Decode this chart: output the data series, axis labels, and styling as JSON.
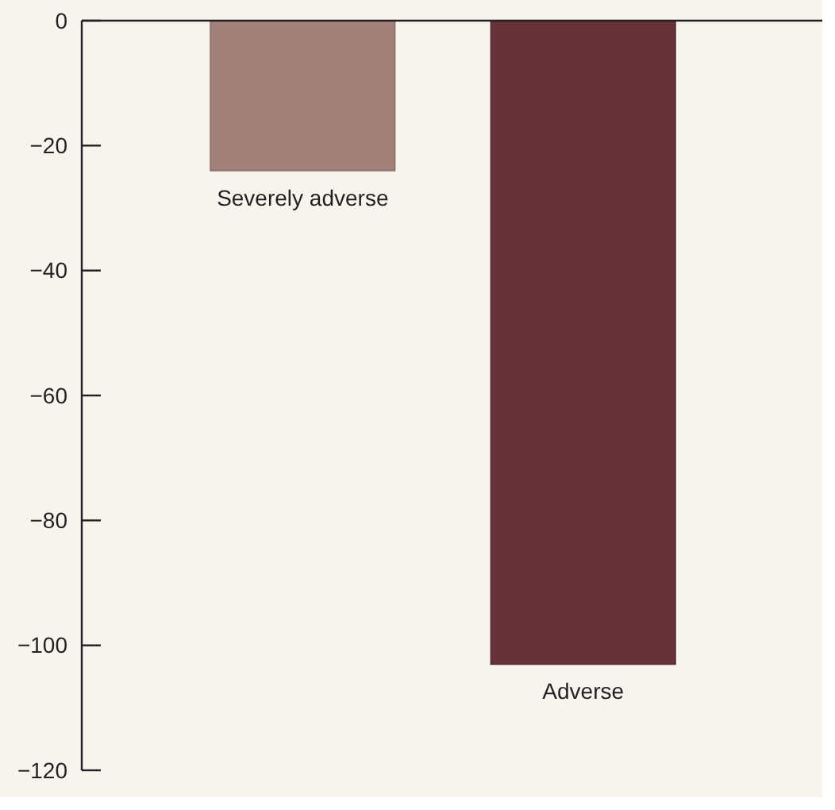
{
  "chart_data": {
    "type": "bar",
    "categories": [
      "Severely adverse",
      "Adverse"
    ],
    "values": [
      -24,
      -103
    ],
    "colors": [
      "#a3817b",
      "#67333a"
    ],
    "ylim": [
      -120,
      0
    ],
    "yticks": [
      -120,
      -100,
      -80,
      -60,
      -40,
      -20,
      0
    ],
    "grid": false
  }
}
